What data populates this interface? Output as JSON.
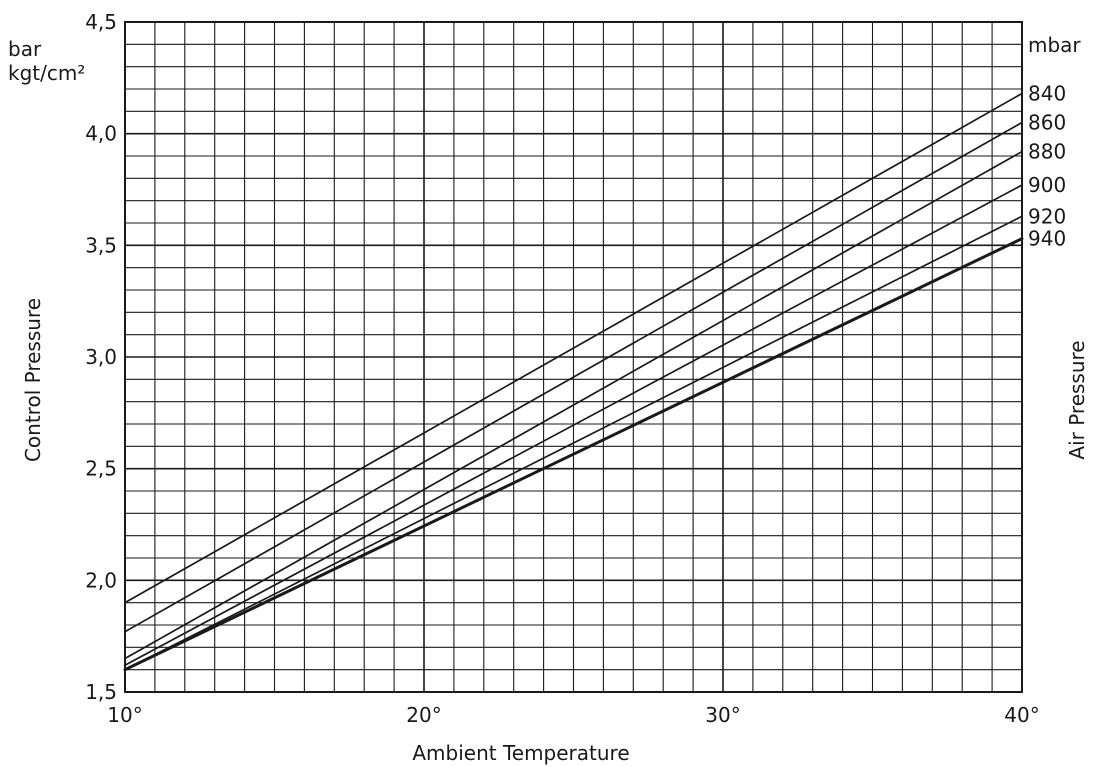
{
  "chart_data": {
    "type": "line",
    "title": "",
    "xlabel": "Ambient Temperature",
    "ylabel": "Control Pressure",
    "ylabel_units": [
      "bar",
      "kgt/cm²"
    ],
    "right_label": "Air Pressure",
    "right_units": "mbar",
    "xlim": [
      10,
      40
    ],
    "ylim": [
      1.5,
      4.5
    ],
    "x_ticks": [
      10,
      20,
      30,
      40
    ],
    "x_tick_labels": [
      "10°",
      "20°",
      "30°",
      "40°"
    ],
    "y_ticks": [
      1.5,
      2.0,
      2.5,
      3.0,
      3.5,
      4.0,
      4.5
    ],
    "y_tick_labels": [
      "1,5",
      "2,0",
      "2,5",
      "3,0",
      "3,5",
      "4,0",
      "4,5"
    ],
    "grid": true,
    "grid_minor_x": 1,
    "grid_minor_y": 0.1,
    "series": [
      {
        "name": "840",
        "x": [
          10,
          40
        ],
        "y": [
          1.9,
          4.18
        ]
      },
      {
        "name": "860",
        "x": [
          10,
          40
        ],
        "y": [
          1.77,
          4.05
        ]
      },
      {
        "name": "880",
        "x": [
          10,
          40
        ],
        "y": [
          1.65,
          3.92
        ]
      },
      {
        "name": "900",
        "x": [
          10,
          40
        ],
        "y": [
          1.62,
          3.77
        ]
      },
      {
        "name": "920",
        "x": [
          10,
          40
        ],
        "y": [
          1.6,
          3.63
        ]
      },
      {
        "name": "940",
        "x": [
          10,
          40
        ],
        "y": [
          1.6,
          3.53
        ]
      }
    ],
    "colors": {
      "ink": "#1a1a1a",
      "background": "#ffffff"
    }
  }
}
